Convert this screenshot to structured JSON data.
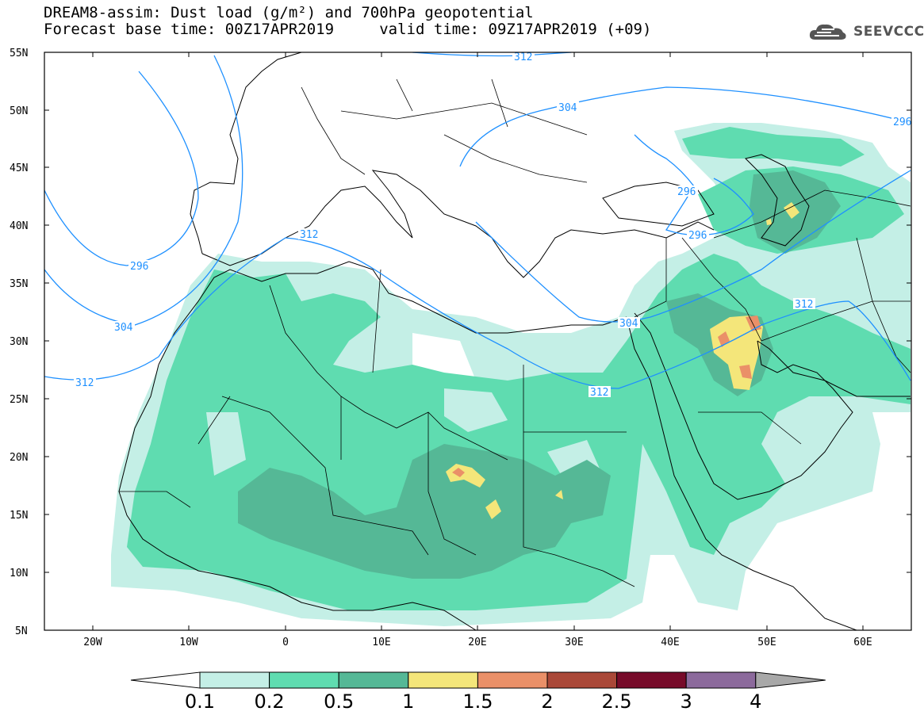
{
  "header": {
    "title_line1": "DREAM8-assim: Dust load (g/m²) and 700hPa geopotential",
    "title_line2": "Forecast base time: 00Z17APR2019     valid time: 09Z17APR2019 (+09)"
  },
  "logo": {
    "text": "SEEVCCC",
    "icon": "cloud-icon"
  },
  "map": {
    "lat_labels": [
      "55N",
      "50N",
      "45N",
      "40N",
      "35N",
      "30N",
      "25N",
      "20N",
      "15N",
      "10N",
      "5N"
    ],
    "lon_labels": [
      "20W",
      "10W",
      "0",
      "10E",
      "20E",
      "30E",
      "40E",
      "50E",
      "60E"
    ],
    "contour_labels": [
      "312",
      "304",
      "296",
      "296",
      "304",
      "312",
      "312",
      "304",
      "312",
      "296",
      "296",
      "312"
    ]
  },
  "colorbar": {
    "levels": [
      "0.1",
      "0.2",
      "0.5",
      "1",
      "1.5",
      "2",
      "2.5",
      "3",
      "4"
    ],
    "colors": [
      "#ffffff",
      "#c4efe6",
      "#5fdcb0",
      "#55b896",
      "#f4e67a",
      "#ea9068",
      "#aa4838",
      "#770b2a",
      "#8c6a9c",
      "#a8a8a8"
    ]
  },
  "colors": {
    "contour": "#1e90ff",
    "dust_light": "#c4efe6",
    "dust_mid": "#5fdcb0",
    "dust_dark": "#55b896",
    "dust_yellow": "#f4e67a",
    "dust_orange": "#ea9068"
  }
}
